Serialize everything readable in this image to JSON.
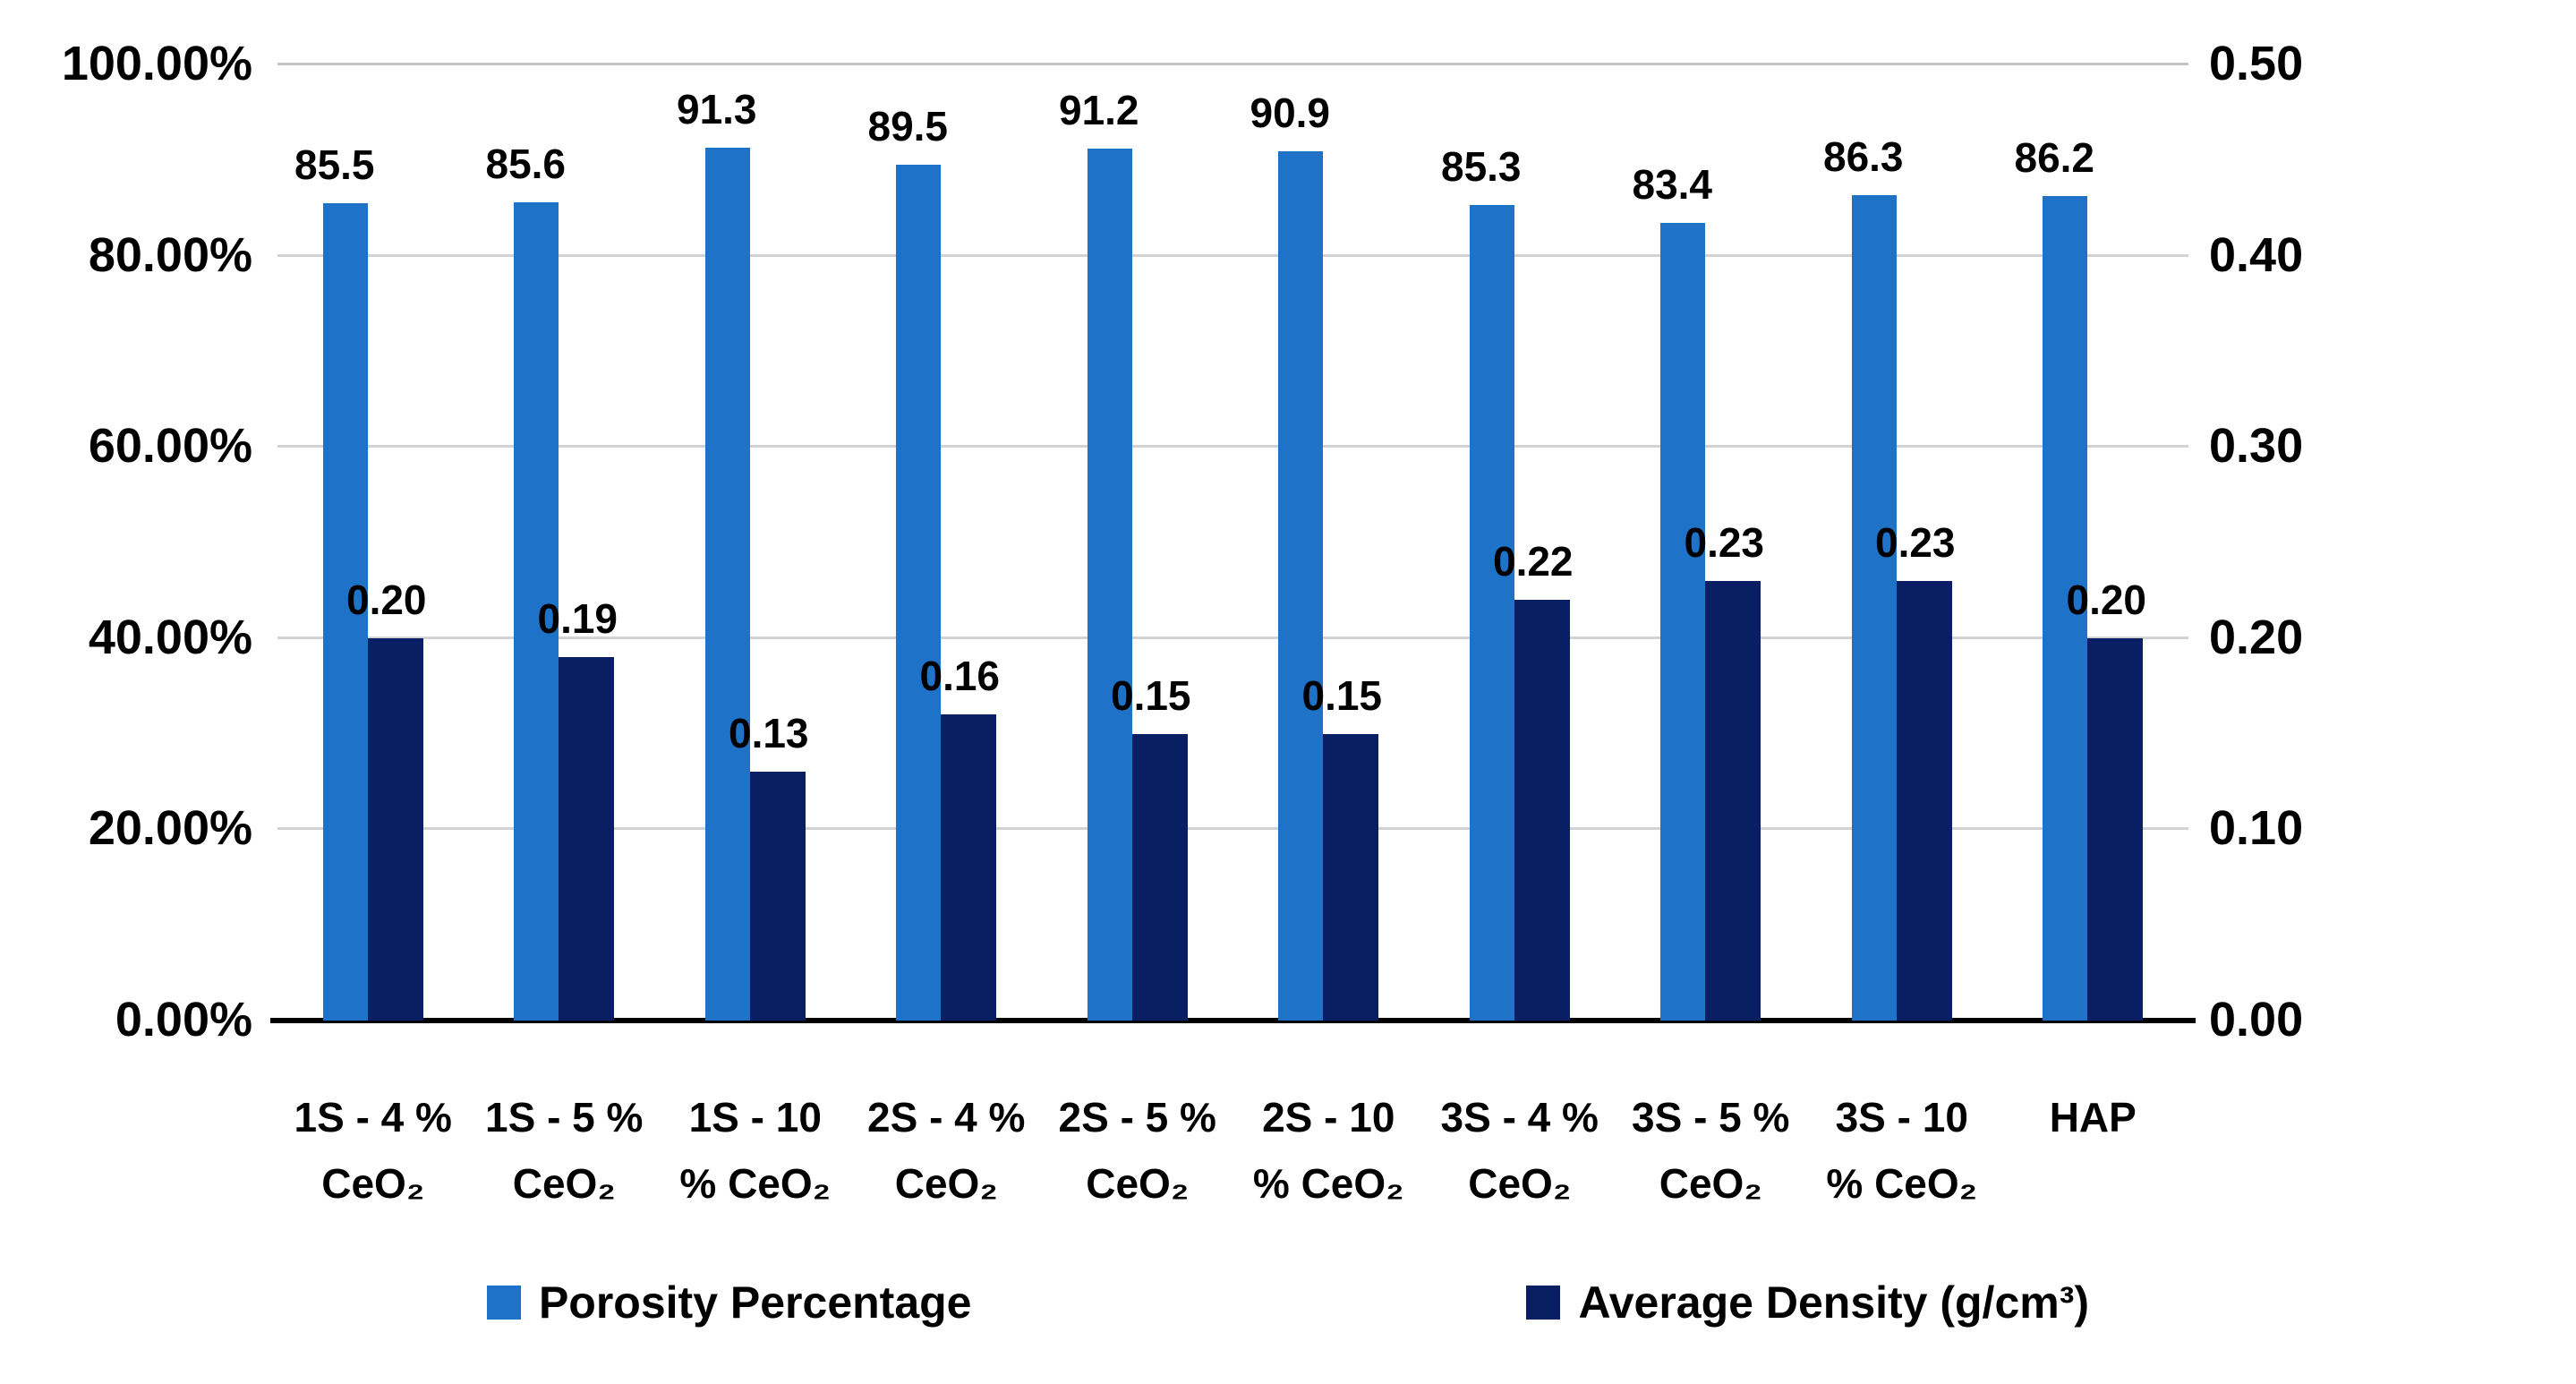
{
  "chart_data": {
    "type": "bar",
    "title": "",
    "categories": [
      "1S - 4 % CeO₂",
      "1S - 5 % CeO₂",
      "1S - 10 % CeO₂",
      "2S - 4 % CeO₂",
      "2S - 5 % CeO₂",
      "2S - 10 % CeO₂",
      "3S - 4 % CeO₂",
      "3S - 5 % CeO₂",
      "3S - 10 % CeO₂",
      "HAP"
    ],
    "category_lines": [
      {
        "line1": "1S - 4 %",
        "line2": "CeO₂"
      },
      {
        "line1": "1S - 5 %",
        "line2": "CeO₂"
      },
      {
        "line1": "1S - 10",
        "line2": "% CeO₂"
      },
      {
        "line1": "2S - 4 %",
        "line2": "CeO₂"
      },
      {
        "line1": "2S - 5 %",
        "line2": "CeO₂"
      },
      {
        "line1": "2S - 10",
        "line2": "% CeO₂"
      },
      {
        "line1": "3S - 4 %",
        "line2": "CeO₂"
      },
      {
        "line1": "3S - 5 %",
        "line2": "CeO₂"
      },
      {
        "line1": "3S - 10",
        "line2": "% CeO₂"
      },
      {
        "line1": "HAP",
        "line2": ""
      }
    ],
    "series": [
      {
        "name": "Porosity Percentage",
        "axis": "left",
        "color": "#1e73c8",
        "values": [
          85.5,
          85.6,
          91.3,
          89.5,
          91.2,
          90.9,
          85.3,
          83.4,
          86.3,
          86.2
        ],
        "labels": [
          "85.5",
          "85.6",
          "91.3",
          "89.5",
          "91.2",
          "90.9",
          "85.3",
          "83.4",
          "86.3",
          "86.2"
        ]
      },
      {
        "name": "Average Density (g/cm³)",
        "axis": "right",
        "color": "#0a1f63",
        "values": [
          0.2,
          0.19,
          0.13,
          0.16,
          0.15,
          0.15,
          0.22,
          0.23,
          0.23,
          0.2
        ],
        "labels": [
          "0.20",
          "0.19",
          "0.13",
          "0.16",
          "0.15",
          "0.15",
          "0.22",
          "0.23",
          "0.23",
          "0.20"
        ]
      }
    ],
    "left_axis": {
      "min": 0,
      "max": 100,
      "ticks": [
        "0.00%",
        "20.00%",
        "40.00%",
        "60.00%",
        "80.00%",
        "100.00%"
      ]
    },
    "right_axis": {
      "min": 0,
      "max": 0.5,
      "ticks": [
        "0.00",
        "0.10",
        "0.20",
        "0.30",
        "0.40",
        "0.50"
      ]
    },
    "grid": "horizontal",
    "legend_position": "bottom"
  }
}
